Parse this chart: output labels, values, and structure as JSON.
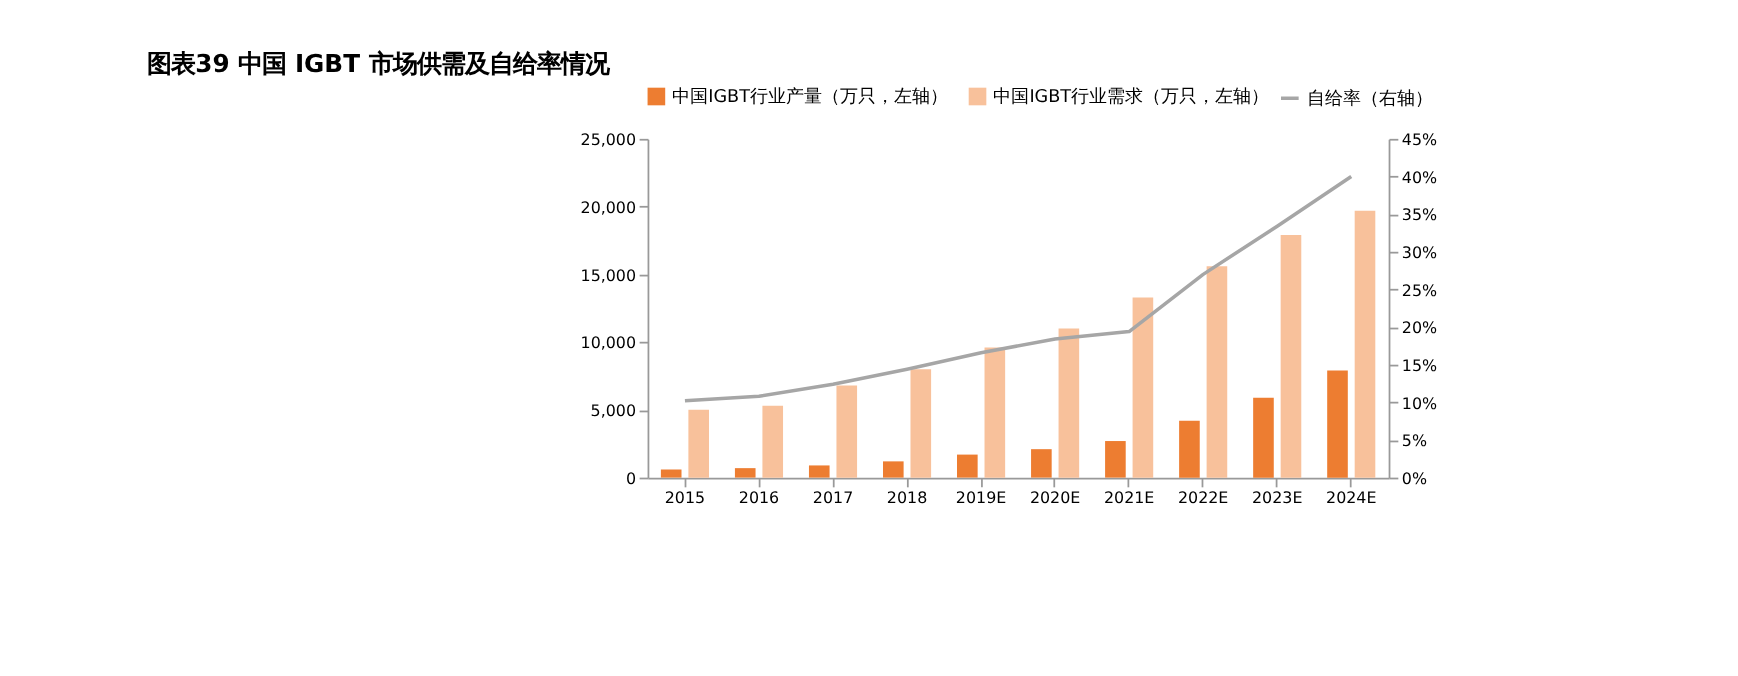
{
  "chart_data": {
    "type": "bar",
    "title": "图表39    中国 IGBT 市场供需及自给率情况",
    "categories": [
      "2015",
      "2016",
      "2017",
      "2018",
      "2019E",
      "2020E",
      "2021E",
      "2022E",
      "2023E",
      "2024E"
    ],
    "series": [
      {
        "name": "中国IGBT行业产量（万只，左轴）",
        "color": "#ed7d31",
        "values": [
          600,
          700,
          900,
          1200,
          1700,
          2100,
          2700,
          4200,
          5900,
          7900
        ]
      },
      {
        "name": "中国IGBT行业需求（万只，左轴）",
        "color": "#f8c19b",
        "values": [
          5000,
          5300,
          6800,
          8000,
          9600,
          11000,
          13300,
          15600,
          17900,
          19700
        ]
      },
      {
        "name": "自给率（右轴）",
        "color": "#a6a6a6",
        "type": "line",
        "axis": "y2",
        "values": [
          10.2,
          10.8,
          12.4,
          14.4,
          16.6,
          18.4,
          19.4,
          27.0,
          33.4,
          40.0
        ]
      }
    ],
    "ylim": [
      0,
      25000
    ],
    "yticks": [
      {
        "value": 0,
        "label": "0"
      },
      {
        "value": 5000,
        "label": "5,000"
      },
      {
        "value": 10000,
        "label": "10,000"
      },
      {
        "value": 15000,
        "label": "15,000"
      },
      {
        "value": 20000,
        "label": "20,000"
      },
      {
        "value": 25000,
        "label": "25,000"
      }
    ],
    "y2lim": [
      0,
      45
    ],
    "y2ticks": [
      {
        "value": 0,
        "label": "0%"
      },
      {
        "value": 5,
        "label": "5%"
      },
      {
        "value": 10,
        "label": "10%"
      },
      {
        "value": 15,
        "label": "15%"
      },
      {
        "value": 20,
        "label": "20%"
      },
      {
        "value": 25,
        "label": "25%"
      },
      {
        "value": 30,
        "label": "30%"
      },
      {
        "value": 35,
        "label": "35%"
      },
      {
        "value": 40,
        "label": "40%"
      },
      {
        "value": 45,
        "label": "45%"
      }
    ],
    "grid": false,
    "legend": "top",
    "marker": "none",
    "line_style": "solid"
  }
}
